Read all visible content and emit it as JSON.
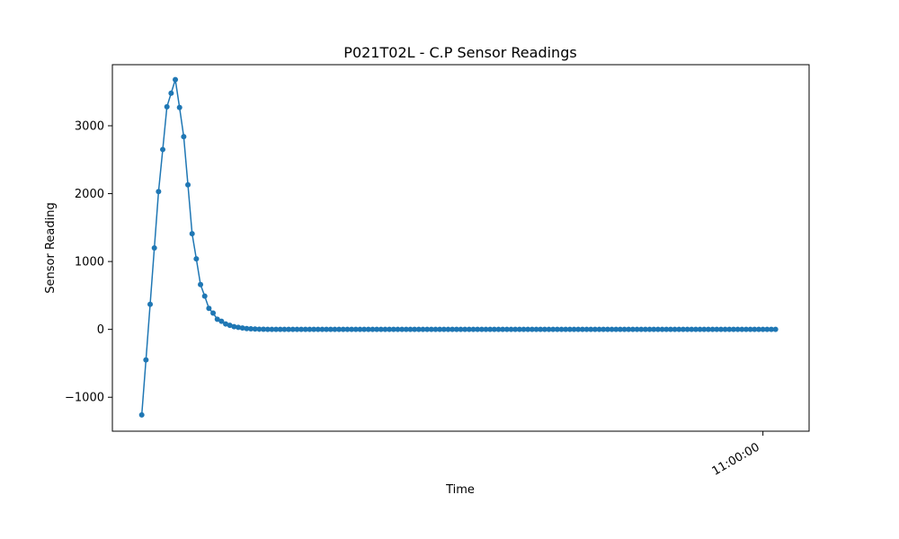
{
  "chart_data": {
    "type": "line",
    "title": "P021T02L - C.P Sensor Readings",
    "xlabel": "Time",
    "ylabel": "Sensor Reading",
    "ylim": [
      -1500,
      3900
    ],
    "yticks": [
      -1000,
      0,
      1000,
      2000,
      3000
    ],
    "ytick_labels": [
      "−1000",
      "0",
      "1000",
      "2000",
      "3000"
    ],
    "xtick_labels": [
      "11:00:00"
    ],
    "xtick_index": 148,
    "xlim_index": [
      -7,
      159
    ],
    "grid": false,
    "legend": "none",
    "series": [
      {
        "name": "C.P",
        "color": "#1f77b4",
        "marker": "circle",
        "peak_values": [
          -1260,
          -450,
          370,
          1200,
          2030,
          2650,
          3280,
          3480,
          3680,
          3270,
          2840,
          2130,
          1410,
          1040,
          660,
          490,
          310,
          240,
          150,
          120,
          80,
          60,
          40,
          30,
          20,
          12,
          8,
          5,
          3,
          2
        ],
        "tail_value": 0,
        "tail_count": 122
      }
    ]
  }
}
